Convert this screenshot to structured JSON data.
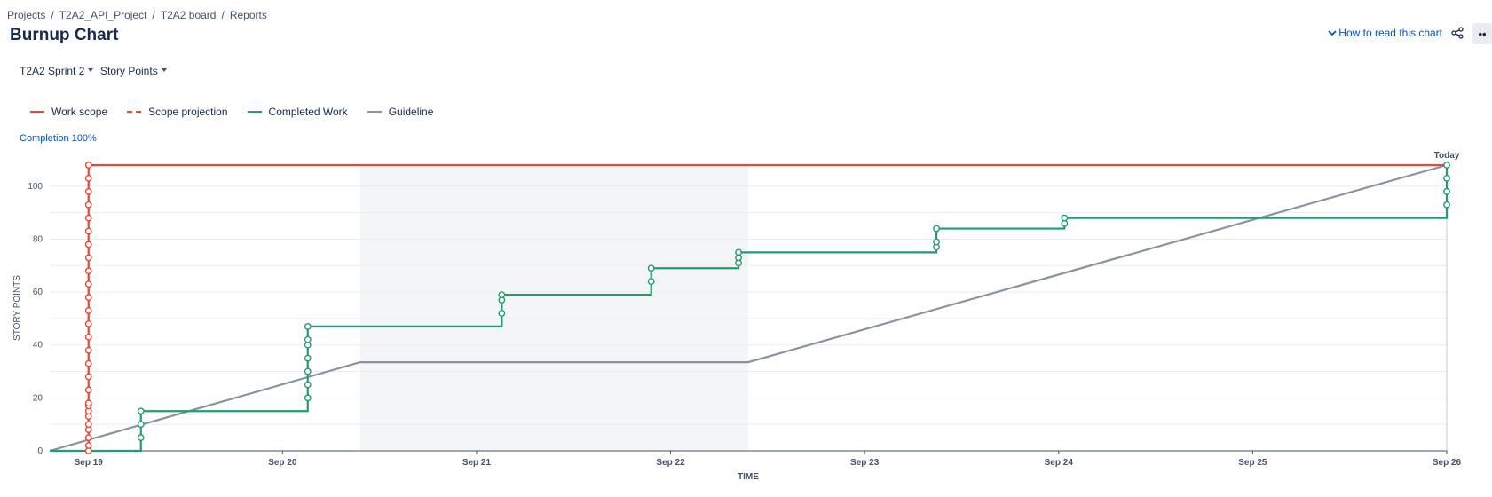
{
  "breadcrumb": [
    "Projects",
    "T2A2_API_Project",
    "T2A2 board",
    "Reports"
  ],
  "page_title": "Burnup Chart",
  "help_link": "How to read this chart",
  "controls": {
    "sprint": "T2A2 Sprint 2",
    "estimation": "Story Points"
  },
  "legend": [
    {
      "label": "Work scope",
      "color": "#e5493a",
      "style": "solid"
    },
    {
      "label": "Scope projection",
      "color": "#e5493a",
      "style": "dashed"
    },
    {
      "label": "Completed Work",
      "color": "#1f9d6f",
      "style": "solid"
    },
    {
      "label": "Guideline",
      "color": "#8993a4",
      "style": "solid"
    }
  ],
  "completion_link": "Completion 100%",
  "chart_data": {
    "type": "line",
    "xlabel": "TIME",
    "ylabel": "STORY POINTS",
    "x_ticks": [
      "Sep 19",
      "Sep 20",
      "Sep 21",
      "Sep 22",
      "Sep 23",
      "Sep 24",
      "Sep 25",
      "Sep 26"
    ],
    "x_range": [
      -0.2,
      7.0
    ],
    "ylim": [
      0,
      108
    ],
    "y_ticks": [
      0,
      20,
      40,
      60,
      80,
      100
    ],
    "today_label": "Today",
    "grid": true,
    "non_working_period": [
      1.4,
      3.4
    ],
    "colors": {
      "scope": "#e5493a",
      "completed": "#1f9d6f",
      "guideline": "#8993a4",
      "nonworking": "#f4f5f7"
    },
    "series": [
      {
        "name": "Work scope",
        "type": "step",
        "points": [
          [
            0,
            0
          ],
          [
            0,
            108
          ],
          [
            7,
            108
          ]
        ],
        "markers": [
          [
            0,
            0
          ],
          [
            0,
            2
          ],
          [
            0,
            5
          ],
          [
            0,
            8
          ],
          [
            0,
            10
          ],
          [
            0,
            13
          ],
          [
            0,
            15
          ],
          [
            0,
            17
          ],
          [
            0,
            18
          ],
          [
            0,
            23
          ],
          [
            0,
            28
          ],
          [
            0,
            33
          ],
          [
            0,
            38
          ],
          [
            0,
            43
          ],
          [
            0,
            48
          ],
          [
            0,
            53
          ],
          [
            0,
            58
          ],
          [
            0,
            63
          ],
          [
            0,
            68
          ],
          [
            0,
            73
          ],
          [
            0,
            78
          ],
          [
            0,
            83
          ],
          [
            0,
            88
          ],
          [
            0,
            93
          ],
          [
            0,
            98
          ],
          [
            0,
            103
          ],
          [
            0,
            108
          ]
        ]
      },
      {
        "name": "Completed Work",
        "type": "step",
        "points": [
          [
            -0.2,
            0
          ],
          [
            0.27,
            0
          ],
          [
            0.27,
            15
          ],
          [
            1.13,
            15
          ],
          [
            1.13,
            47
          ],
          [
            2.13,
            47
          ],
          [
            2.13,
            59
          ],
          [
            2.9,
            59
          ],
          [
            2.9,
            69
          ],
          [
            3.35,
            69
          ],
          [
            3.35,
            75
          ],
          [
            4.37,
            75
          ],
          [
            4.37,
            84
          ],
          [
            5.03,
            84
          ],
          [
            5.03,
            88
          ],
          [
            7,
            88
          ],
          [
            7,
            108
          ]
        ],
        "markers": [
          [
            0.27,
            5
          ],
          [
            0.27,
            10
          ],
          [
            0.27,
            15
          ],
          [
            1.13,
            20
          ],
          [
            1.13,
            25
          ],
          [
            1.13,
            30
          ],
          [
            1.13,
            35
          ],
          [
            1.13,
            40
          ],
          [
            1.13,
            42
          ],
          [
            1.13,
            47
          ],
          [
            2.13,
            52
          ],
          [
            2.13,
            57
          ],
          [
            2.13,
            59
          ],
          [
            2.9,
            64
          ],
          [
            2.9,
            69
          ],
          [
            3.35,
            71
          ],
          [
            3.35,
            73
          ],
          [
            3.35,
            75
          ],
          [
            4.37,
            77
          ],
          [
            4.37,
            79
          ],
          [
            4.37,
            84
          ],
          [
            5.03,
            86
          ],
          [
            5.03,
            88
          ],
          [
            7,
            93
          ],
          [
            7,
            98
          ],
          [
            7,
            103
          ],
          [
            7,
            108
          ]
        ]
      },
      {
        "name": "Guideline",
        "type": "line",
        "points": [
          [
            -0.2,
            0
          ],
          [
            1.4,
            33.5
          ],
          [
            3.4,
            33.5
          ],
          [
            7,
            108
          ]
        ]
      }
    ]
  }
}
